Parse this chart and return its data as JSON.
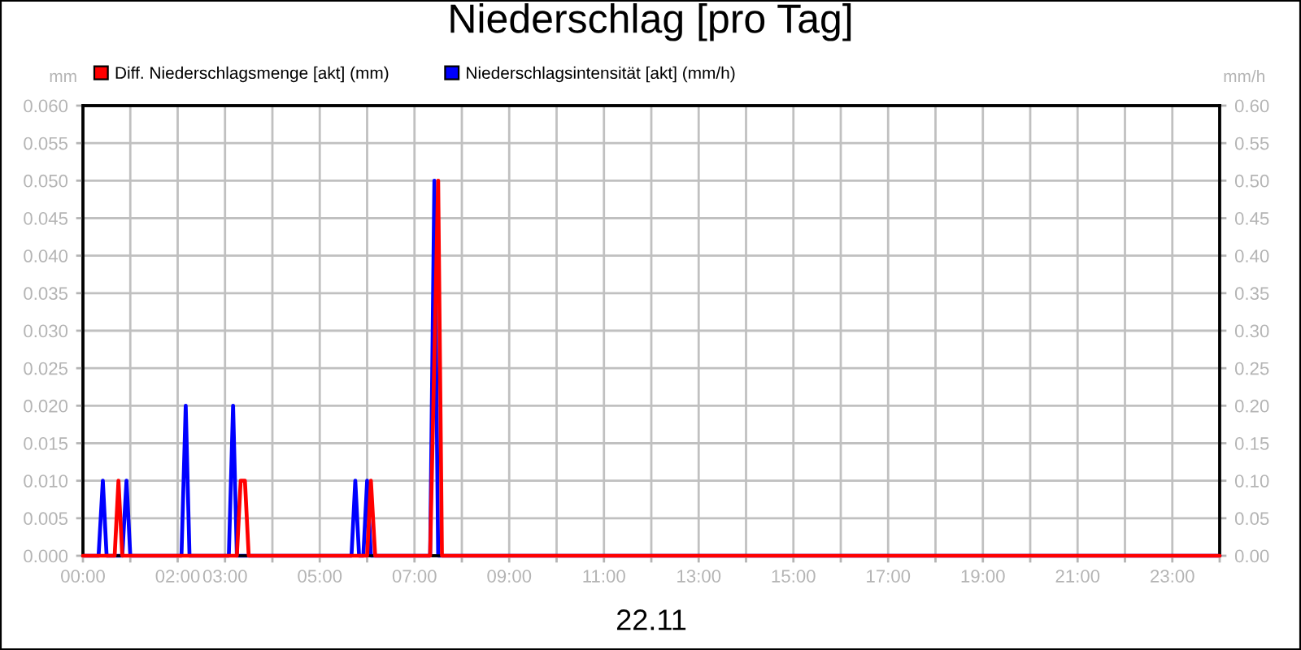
{
  "chart_data": {
    "type": "line",
    "title": "Niederschlag [pro Tag]",
    "xlabel": "22.11",
    "ylabel": "mm",
    "y2label": "mm/h",
    "xlim": [
      0,
      24
    ],
    "xticks": [
      {
        "value": 0,
        "label": "00:00"
      },
      {
        "value": 1,
        "label": null
      },
      {
        "value": 2,
        "label": "02:00"
      },
      {
        "value": 3,
        "label": "03:00"
      },
      {
        "value": 4,
        "label": null
      },
      {
        "value": 5,
        "label": "05:00"
      },
      {
        "value": 6,
        "label": null
      },
      {
        "value": 7,
        "label": "07:00"
      },
      {
        "value": 8,
        "label": null
      },
      {
        "value": 9,
        "label": "09:00"
      },
      {
        "value": 10,
        "label": null
      },
      {
        "value": 11,
        "label": "11:00"
      },
      {
        "value": 12,
        "label": null
      },
      {
        "value": 13,
        "label": "13:00"
      },
      {
        "value": 14,
        "label": null
      },
      {
        "value": 15,
        "label": "15:00"
      },
      {
        "value": 16,
        "label": null
      },
      {
        "value": 17,
        "label": "17:00"
      },
      {
        "value": 18,
        "label": null
      },
      {
        "value": 19,
        "label": "19:00"
      },
      {
        "value": 20,
        "label": null
      },
      {
        "value": 21,
        "label": "21:00"
      },
      {
        "value": 22,
        "label": null
      },
      {
        "value": 23,
        "label": "23:00"
      },
      {
        "value": 24,
        "label": null
      }
    ],
    "ylim": [
      0,
      0.06
    ],
    "yticks": [
      {
        "value": 0,
        "label": "0.000"
      },
      {
        "value": 0.005,
        "label": "0.005"
      },
      {
        "value": 0.01,
        "label": "0.010"
      },
      {
        "value": 0.015,
        "label": "0.015"
      },
      {
        "value": 0.02,
        "label": "0.020"
      },
      {
        "value": 0.025,
        "label": "0.025"
      },
      {
        "value": 0.03,
        "label": "0.030"
      },
      {
        "value": 0.035,
        "label": "0.035"
      },
      {
        "value": 0.04,
        "label": "0.040"
      },
      {
        "value": 0.045,
        "label": "0.045"
      },
      {
        "value": 0.05,
        "label": "0.050"
      },
      {
        "value": 0.055,
        "label": "0.055"
      },
      {
        "value": 0.06,
        "label": "0.060"
      }
    ],
    "y2lim": [
      0,
      0.6
    ],
    "y2ticks": [
      {
        "value": 0,
        "label": "0.00"
      },
      {
        "value": 0.05,
        "label": "0.05"
      },
      {
        "value": 0.1,
        "label": "0.10"
      },
      {
        "value": 0.15,
        "label": "0.15"
      },
      {
        "value": 0.2,
        "label": "0.20"
      },
      {
        "value": 0.25,
        "label": "0.25"
      },
      {
        "value": 0.3,
        "label": "0.30"
      },
      {
        "value": 0.35,
        "label": "0.35"
      },
      {
        "value": 0.4,
        "label": "0.40"
      },
      {
        "value": 0.45,
        "label": "0.45"
      },
      {
        "value": 0.5,
        "label": "0.50"
      },
      {
        "value": 0.55,
        "label": "0.55"
      },
      {
        "value": 0.6,
        "label": "0.60"
      }
    ],
    "grid": true,
    "legend": "top left",
    "series": [
      {
        "name": "Diff. Niederschlagsmenge [akt] (mm)",
        "color": "#ff0000",
        "x": [
          0,
          0.67,
          0.75,
          0.83,
          3.25,
          3.33,
          3.42,
          3.5,
          6.0,
          6.08,
          6.17,
          7.33,
          7.5,
          7.58,
          24
        ],
        "values": [
          0,
          0,
          0.01,
          0,
          0,
          0.01,
          0.01,
          0,
          0,
          0.01,
          0,
          0,
          0.05,
          0,
          0
        ]
      },
      {
        "name": "Niederschlagsintensität [akt] (mm/h)",
        "color": "#0000ff",
        "axis": "y2",
        "x": [
          0,
          0.33,
          0.42,
          0.5,
          0.83,
          0.92,
          1.0,
          2.08,
          2.17,
          2.25,
          3.08,
          3.17,
          3.25,
          5.67,
          5.75,
          5.83,
          5.92,
          6.0,
          6.08,
          7.33,
          7.42,
          7.5,
          24
        ],
        "values": [
          0,
          0,
          0.1,
          0,
          0,
          0.1,
          0,
          0,
          0.2,
          0,
          0,
          0.2,
          0,
          0,
          0.1,
          0,
          0,
          0.1,
          0,
          0,
          0.5,
          0,
          0
        ]
      }
    ]
  }
}
